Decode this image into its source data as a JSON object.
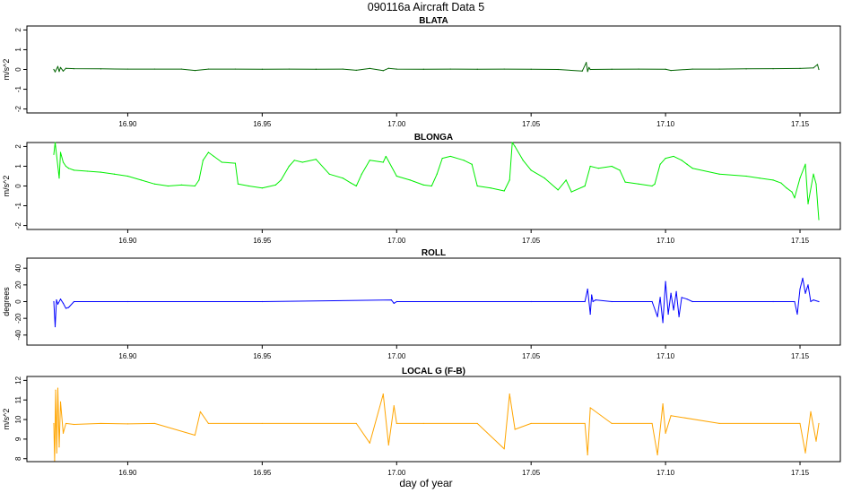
{
  "figure": {
    "title": "090116a   Aircraft Data 5",
    "xlabel": "day of year"
  },
  "chart_data": [
    {
      "type": "line",
      "title": "BLATA",
      "ylabel": "m/s^2",
      "color": "#006400",
      "xlim": [
        16.8625,
        17.165
      ],
      "ylim": [
        -2.2,
        2.2
      ],
      "xticks": [
        16.9,
        16.95,
        17.0,
        17.05,
        17.1,
        17.15
      ],
      "xtick_labels": [
        "16.90",
        "16.95",
        "17.00",
        "17.05",
        "17.10",
        "17.15"
      ],
      "yticks": [
        -2,
        -1,
        0,
        1,
        2
      ],
      "ytick_labels": [
        "-2",
        "-1",
        "0",
        "1",
        "2"
      ],
      "series": [
        {
          "x": [
            16.8725,
            16.873,
            16.874,
            16.8745,
            16.875,
            16.876,
            16.877,
            16.88,
            16.89,
            16.9,
            16.91,
            16.92,
            16.925,
            16.93,
            16.94,
            16.95,
            16.96,
            16.97,
            16.98,
            16.985,
            16.99,
            16.995,
            16.997,
            17.0,
            17.01,
            17.02,
            17.03,
            17.04,
            17.05,
            17.06,
            17.069,
            17.0705,
            17.071,
            17.0715,
            17.072,
            17.08,
            17.09,
            17.1,
            17.102,
            17.11,
            17.12,
            17.13,
            17.14,
            17.15,
            17.155,
            17.1565,
            17.157
          ],
          "y": [
            0.0,
            -0.12,
            0.15,
            -0.1,
            0.1,
            -0.08,
            0.06,
            0.04,
            0.03,
            0.02,
            0.02,
            0.02,
            -0.05,
            0.02,
            0.02,
            0.01,
            0.02,
            0.01,
            0.02,
            -0.04,
            0.05,
            -0.06,
            0.06,
            0.02,
            0.01,
            0.02,
            0.01,
            0.02,
            0.01,
            0.0,
            -0.08,
            0.35,
            -0.1,
            0.1,
            0.0,
            0.01,
            0.02,
            0.01,
            -0.05,
            0.02,
            0.02,
            0.03,
            0.04,
            0.05,
            0.08,
            0.25,
            0.0
          ]
        }
      ]
    },
    {
      "type": "line",
      "title": "BLONGA",
      "ylabel": "m/s^2",
      "color": "#00ee00",
      "xlim": [
        16.8625,
        17.165
      ],
      "ylim": [
        -2.2,
        2.2
      ],
      "xticks": [
        16.9,
        16.95,
        17.0,
        17.05,
        17.1,
        17.15
      ],
      "xtick_labels": [
        "16.90",
        "16.95",
        "17.00",
        "17.05",
        "17.10",
        "17.15"
      ],
      "yticks": [
        -2,
        -1,
        0,
        1,
        2
      ],
      "ytick_labels": [
        "-2",
        "-1",
        "0",
        "1",
        "2"
      ],
      "series": [
        {
          "x": [
            16.8725,
            16.873,
            16.8745,
            16.875,
            16.876,
            16.877,
            16.878,
            16.88,
            16.885,
            16.89,
            16.895,
            16.9,
            16.905,
            16.91,
            16.915,
            16.92,
            16.925,
            16.9265,
            16.928,
            16.93,
            16.932,
            16.935,
            16.94,
            16.941,
            16.945,
            16.95,
            16.955,
            16.957,
            16.96,
            16.962,
            16.965,
            16.97,
            16.975,
            16.98,
            16.983,
            16.985,
            16.987,
            16.99,
            16.995,
            16.996,
            17.0,
            17.005,
            17.01,
            17.013,
            17.015,
            17.017,
            17.02,
            17.025,
            17.028,
            17.03,
            17.035,
            17.04,
            17.042,
            17.043,
            17.044,
            17.047,
            17.05,
            17.055,
            17.06,
            17.063,
            17.065,
            17.07,
            17.072,
            17.075,
            17.08,
            17.083,
            17.085,
            17.09,
            17.095,
            17.096,
            17.098,
            17.1,
            17.103,
            17.106,
            17.108,
            17.11,
            17.12,
            17.13,
            17.135,
            17.14,
            17.143,
            17.145,
            17.147,
            17.148,
            17.15,
            17.152,
            17.153,
            17.155,
            17.156,
            17.157
          ],
          "y": [
            1.6,
            2.2,
            0.4,
            1.7,
            1.2,
            1.0,
            0.9,
            0.8,
            0.75,
            0.7,
            0.6,
            0.5,
            0.3,
            0.1,
            0.0,
            0.05,
            0.0,
            0.3,
            1.3,
            1.7,
            1.5,
            1.2,
            1.15,
            0.1,
            0.0,
            -0.1,
            0.05,
            0.3,
            1.0,
            1.3,
            1.2,
            1.35,
            0.6,
            0.4,
            0.15,
            0.0,
            0.6,
            1.3,
            1.2,
            1.5,
            0.5,
            0.3,
            0.05,
            0.0,
            0.6,
            1.4,
            1.5,
            1.3,
            1.1,
            0.0,
            -0.1,
            -0.25,
            0.3,
            2.2,
            2.0,
            1.3,
            0.8,
            0.4,
            -0.2,
            0.3,
            -0.3,
            0.0,
            1.0,
            0.9,
            1.0,
            0.8,
            0.2,
            0.1,
            0.0,
            0.1,
            1.1,
            1.4,
            1.5,
            1.3,
            1.1,
            0.9,
            0.6,
            0.5,
            0.4,
            0.3,
            0.15,
            -0.1,
            -0.3,
            -0.6,
            0.4,
            1.1,
            -0.9,
            0.6,
            0.1,
            -1.7
          ]
        }
      ]
    },
    {
      "type": "line",
      "title": "ROLL",
      "ylabel": "degrees",
      "color": "#0000ff",
      "xlim": [
        16.8625,
        17.165
      ],
      "ylim": [
        -52,
        52
      ],
      "xticks": [
        16.9,
        16.95,
        17.0,
        17.05,
        17.1,
        17.15
      ],
      "xtick_labels": [
        "16.90",
        "16.95",
        "17.00",
        "17.05",
        "17.10",
        "17.15"
      ],
      "yticks": [
        -40,
        -20,
        0,
        20,
        40
      ],
      "ytick_labels": [
        "-40",
        "-20",
        "0",
        "20",
        "40"
      ],
      "series": [
        {
          "x": [
            16.8725,
            16.873,
            16.8735,
            16.874,
            16.875,
            16.876,
            16.877,
            16.878,
            16.88,
            16.9,
            16.95,
            16.998,
            16.999,
            17.0,
            17.05,
            17.07,
            17.071,
            17.072,
            17.0725,
            17.073,
            17.074,
            17.08,
            17.095,
            17.097,
            17.098,
            17.099,
            17.1,
            17.101,
            17.102,
            17.103,
            17.104,
            17.105,
            17.106,
            17.108,
            17.11,
            17.14,
            17.148,
            17.149,
            17.15,
            17.151,
            17.152,
            17.153,
            17.154,
            17.155,
            17.157
          ],
          "y": [
            0,
            -30,
            2,
            -3,
            3,
            -2,
            -8,
            -7,
            0,
            0,
            0,
            2,
            -2,
            0,
            0,
            0,
            15,
            -15,
            8,
            0,
            2,
            0,
            0,
            -18,
            5,
            -25,
            24,
            -15,
            10,
            -10,
            12,
            -18,
            5,
            3,
            0,
            0,
            0,
            -15,
            15,
            28,
            10,
            20,
            0,
            2,
            0
          ]
        }
      ]
    },
    {
      "type": "line",
      "title": "LOCAL G (F-B)",
      "ylabel": "m/s^2",
      "color": "#ffa500",
      "xlim": [
        16.8625,
        17.165
      ],
      "ylim": [
        7.85,
        12.2
      ],
      "xticks": [
        16.9,
        16.95,
        17.0,
        17.05,
        17.1,
        17.15
      ],
      "xtick_labels": [
        "16.90",
        "16.95",
        "17.00",
        "17.05",
        "17.10",
        "17.15"
      ],
      "yticks": [
        8,
        9,
        10,
        11,
        12
      ],
      "ytick_labels": [
        "8",
        "9",
        "10",
        "11",
        "12"
      ],
      "series": [
        {
          "x": [
            16.8725,
            16.8728,
            16.8732,
            16.8736,
            16.874,
            16.8745,
            16.875,
            16.876,
            16.877,
            16.88,
            16.89,
            16.9,
            16.91,
            16.925,
            16.927,
            16.93,
            16.95,
            16.985,
            16.99,
            16.995,
            16.997,
            16.999,
            17.0,
            17.01,
            17.03,
            17.04,
            17.042,
            17.044,
            17.05,
            17.07,
            17.071,
            17.072,
            17.08,
            17.095,
            17.097,
            17.099,
            17.1,
            17.102,
            17.12,
            17.15,
            17.152,
            17.154,
            17.156,
            17.157
          ],
          "y": [
            9.8,
            7.9,
            11.5,
            8.3,
            11.6,
            8.6,
            10.9,
            9.3,
            9.8,
            9.75,
            9.8,
            9.78,
            9.8,
            9.2,
            10.4,
            9.8,
            9.8,
            9.8,
            8.8,
            11.3,
            8.7,
            10.7,
            9.8,
            9.8,
            9.8,
            8.5,
            11.3,
            9.5,
            9.8,
            9.8,
            8.2,
            10.6,
            9.8,
            9.8,
            8.2,
            10.8,
            9.3,
            10.2,
            9.8,
            9.8,
            8.3,
            10.4,
            8.9,
            9.8
          ]
        }
      ]
    }
  ]
}
